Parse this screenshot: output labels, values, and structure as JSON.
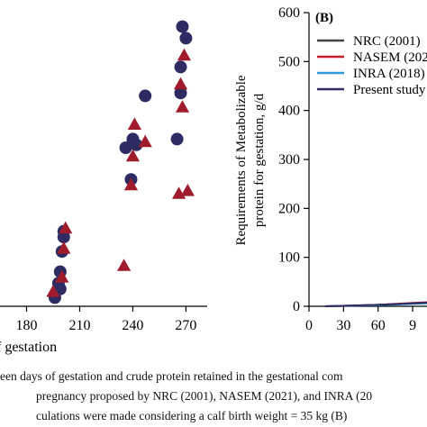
{
  "chart_data": [
    {
      "type": "scatter",
      "xlabel": "f gestation",
      "x_ticks": [
        "180",
        "210",
        "240",
        "270"
      ],
      "xlim": [
        165,
        282
      ],
      "ylim": [
        0,
        1
      ],
      "y_note": "left axis ticks and label not visible",
      "series": [
        {
          "marker": "circle",
          "color": "#2e2b62",
          "points": [
            [
              196,
              0.03
            ],
            [
              198,
              0.08
            ],
            [
              199,
              0.06
            ],
            [
              199,
              0.12
            ],
            [
              200,
              0.19
            ],
            [
              201,
              0.26
            ],
            [
              201,
              0.24
            ],
            [
              236,
              0.55
            ],
            [
              239,
              0.44
            ],
            [
              240,
              0.58
            ],
            [
              242,
              0.56
            ],
            [
              247,
              0.73
            ],
            [
              265,
              0.58
            ],
            [
              267,
              0.83
            ],
            [
              267,
              0.74
            ],
            [
              268,
              0.97
            ],
            [
              270,
              0.93
            ]
          ]
        },
        {
          "marker": "triangle",
          "color": "#a01c2c",
          "points": [
            [
              195,
              0.05
            ],
            [
              200,
              0.1
            ],
            [
              201,
              0.2
            ],
            [
              202,
              0.27
            ],
            [
              235,
              0.14
            ],
            [
              239,
              0.42
            ],
            [
              240,
              0.52
            ],
            [
              241,
              0.63
            ],
            [
              247,
              0.57
            ],
            [
              266,
              0.39
            ],
            [
              267,
              0.77
            ],
            [
              268,
              0.69
            ],
            [
              269,
              0.87
            ],
            [
              271,
              0.4
            ]
          ]
        }
      ]
    },
    {
      "type": "line",
      "panel_label": "(B)",
      "ylabel_line1": "Requirements of Metabolizable",
      "ylabel_line2": "protein for gestation, g/d",
      "ylim": [
        0,
        600
      ],
      "xlim": [
        0,
        140
      ],
      "y_ticks": [
        0,
        100,
        200,
        300,
        400,
        500,
        600
      ],
      "x_ticks": [
        "0",
        "30",
        "60",
        "9"
      ],
      "legend_position": "top-right",
      "series": [
        {
          "name": "NRC (2001)",
          "color": "#444444",
          "x": [
            14,
            30,
            60,
            90,
            140
          ],
          "y": [
            0,
            1,
            3,
            6,
            10
          ]
        },
        {
          "name": "NASEM (202",
          "color": "#c41e2b",
          "x": [
            14,
            30,
            60,
            90,
            140
          ],
          "y": [
            0,
            1,
            3,
            7,
            12
          ]
        },
        {
          "name": "INRA (2018)",
          "color": "#2a9ad6",
          "x": [
            14,
            30,
            60,
            90,
            140
          ],
          "y": [
            0,
            1,
            2,
            5,
            9
          ]
        },
        {
          "name": "Present study",
          "color": "#2e2b62",
          "x": [
            14,
            30,
            60,
            90,
            140
          ],
          "y": [
            0,
            1,
            3,
            6,
            11
          ]
        }
      ]
    }
  ],
  "caption": {
    "line1": "een days of gestation and crude protein retained in the gestational com",
    "line2": "pregnancy proposed by NRC (2001), NASEM (2021), and INRA (20",
    "line3": "culations were made considering a calf birth weight = 35 kg (B)"
  }
}
